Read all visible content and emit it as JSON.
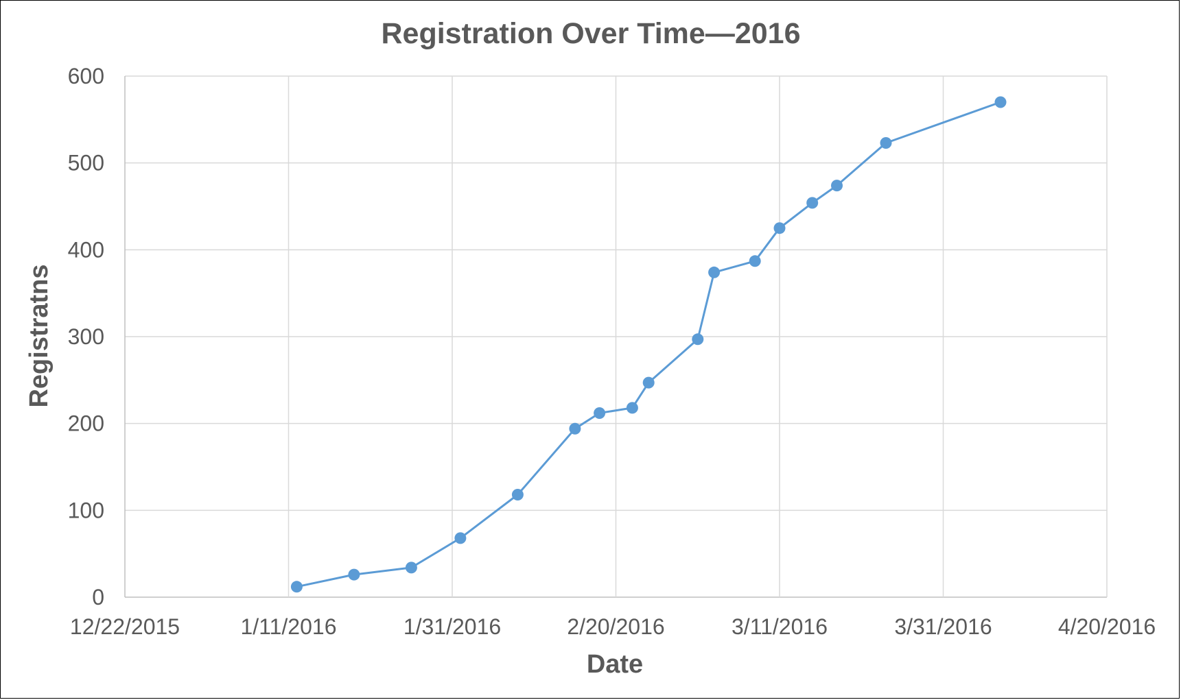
{
  "chart_data": {
    "type": "line",
    "title": "Registration Over Time—2016",
    "xlabel": "Date",
    "ylabel": "Registratns",
    "x_tick_labels": [
      "12/22/2015",
      "1/11/2016",
      "1/31/2016",
      "2/20/2016",
      "3/11/2016",
      "3/31/2016",
      "4/20/2016"
    ],
    "y_tick_labels": [
      "0",
      "100",
      "200",
      "300",
      "400",
      "500",
      "600"
    ],
    "xlim": [
      "2015-12-22",
      "2016-04-20"
    ],
    "ylim": [
      0,
      600
    ],
    "grid": true,
    "legend": "none",
    "colors": {
      "series": "#5b9bd5",
      "text": "#595959",
      "grid": "#d9d9d9"
    },
    "series": [
      {
        "x": [
          "2016-01-12",
          "2016-01-19",
          "2016-01-26",
          "2016-02-01",
          "2016-02-08",
          "2016-02-15",
          "2016-02-18",
          "2016-02-22",
          "2016-02-24",
          "2016-03-01",
          "2016-03-03",
          "2016-03-08",
          "2016-03-11",
          "2016-03-15",
          "2016-03-18",
          "2016-03-24",
          "2016-04-07"
        ],
        "y": [
          12,
          26,
          34,
          68,
          118,
          194,
          212,
          218,
          247,
          297,
          374,
          387,
          425,
          454,
          474,
          523,
          570
        ]
      }
    ]
  }
}
